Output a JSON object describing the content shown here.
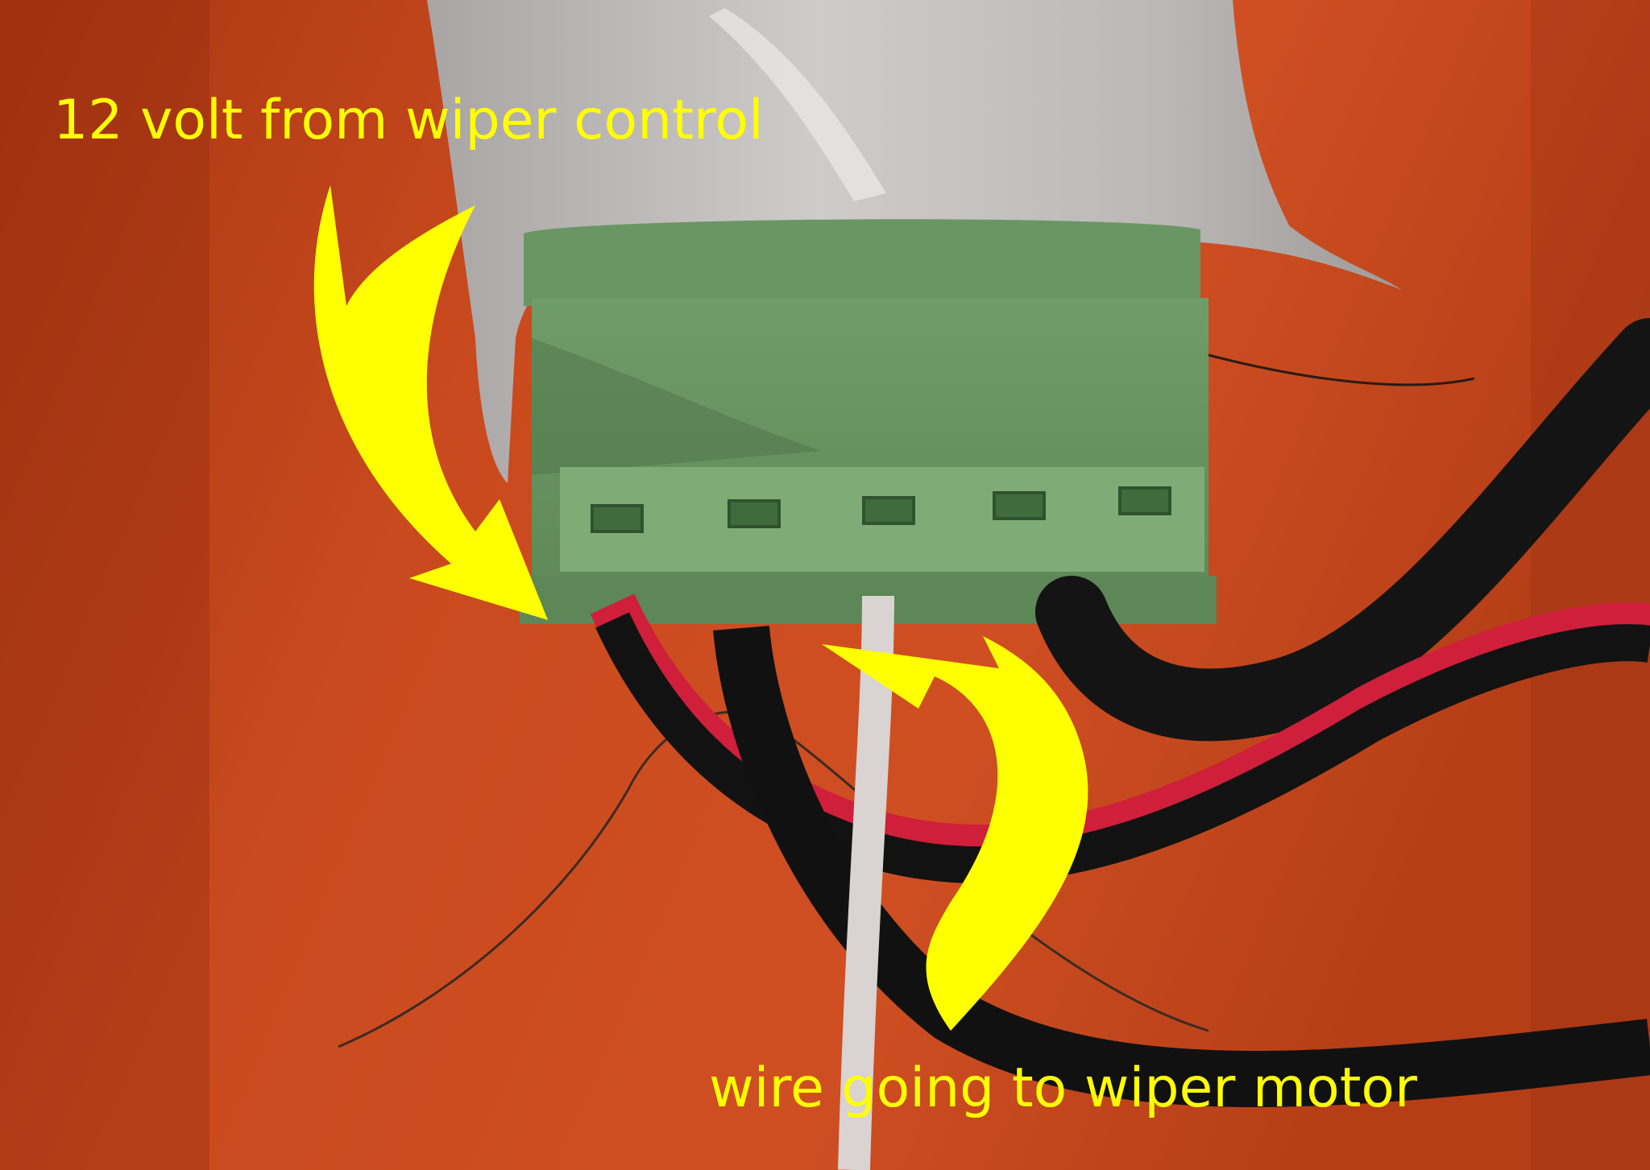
{
  "annotations": {
    "top_label": "12 volt from wiper control",
    "bottom_label": "wire going to wiper motor"
  },
  "objects": {
    "connector": "green-terminal-block",
    "cover": "grey-heat-shrink",
    "cables": [
      "black-cable",
      "red-black-cable",
      "black-cable-lower"
    ]
  },
  "colors": {
    "background": "#c2421b",
    "annotation": "#ffff00",
    "connector": "#74a26c",
    "cover": "#b9b5b3"
  }
}
